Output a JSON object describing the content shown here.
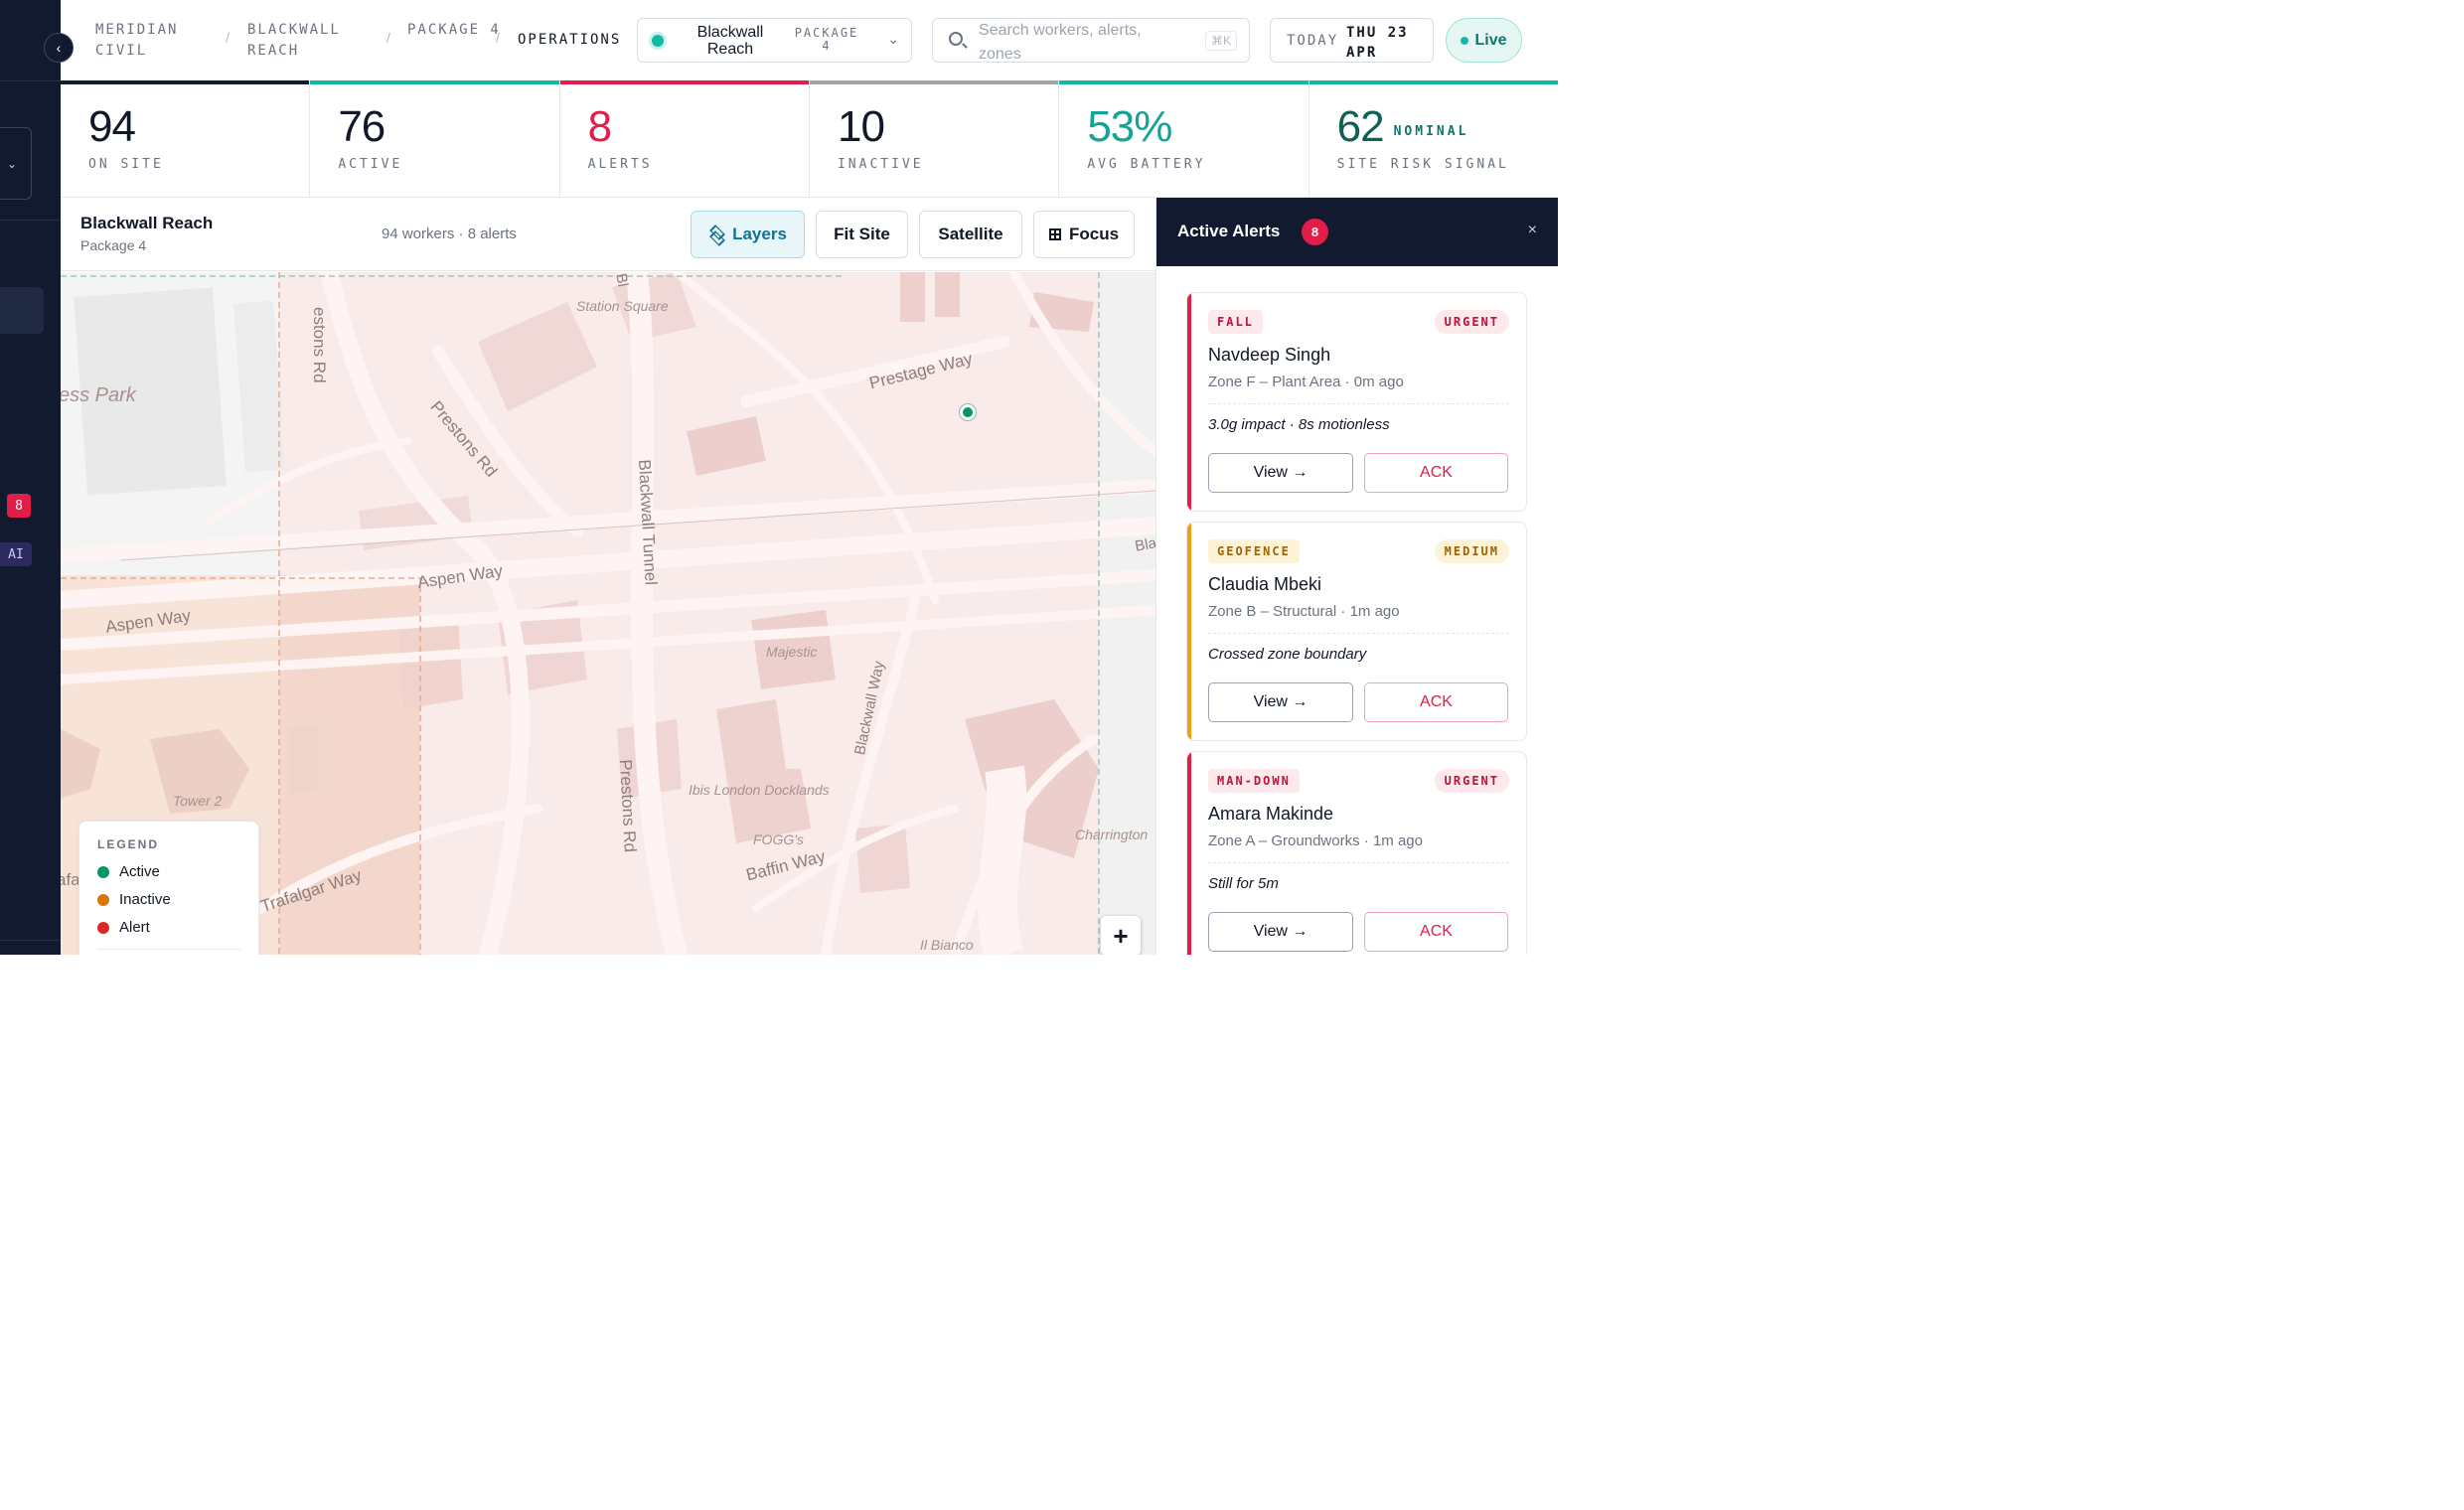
{
  "breadcrumb": [
    {
      "label": "MERIDIAN CIVIL"
    },
    {
      "label": "BLACKWALL REACH"
    },
    {
      "label": "PACKAGE 4"
    },
    {
      "label": "OPERATIONS"
    }
  ],
  "site_selector": {
    "site": "Blackwall Reach",
    "package": "PACKAGE 4"
  },
  "search": {
    "placeholder": "Search workers, alerts, zones",
    "shortcut": "⌘K"
  },
  "date": {
    "label": "TODAY",
    "value": "THU 23 APR"
  },
  "live_label": "Live",
  "sidebar": {
    "alert_badge": "8",
    "ai_label": "AI"
  },
  "kpis": [
    {
      "value": "94",
      "label": "ON SITE",
      "accent": "#111827",
      "bar": "#111a2e"
    },
    {
      "value": "76",
      "label": "ACTIVE",
      "accent": "#111827",
      "bar": "#14b8a6"
    },
    {
      "value": "8",
      "label": "ALERTS",
      "accent": "#e11d48",
      "bar": "#e11d48"
    },
    {
      "value": "10",
      "label": "INACTIVE",
      "accent": "#111827",
      "bar": "#a3a3a3"
    },
    {
      "value": "53%",
      "label": "AVG BATTERY",
      "accent": "#14a394",
      "bar": "#14b8a6"
    },
    {
      "value": "62",
      "suffix": "NOMINAL",
      "label": "SITE RISK SIGNAL",
      "accent": "#0f5f55",
      "bar": "#14b8a6"
    }
  ],
  "map": {
    "title": "Blackwall Reach",
    "subtitle": "Package 4",
    "count": "94 workers · 8 alerts",
    "buttons": {
      "layers": "Layers",
      "fit": "Fit Site",
      "satellite": "Satellite",
      "focus": "Focus"
    },
    "places": {
      "station_square": "Station Square",
      "park": "ess Park",
      "majestic": "Majestic",
      "ibis": "Ibis London Docklands",
      "fogg": "FOGG's",
      "tower": "Tower 2",
      "charrington": "Charrington",
      "il_bianco": "Il Bianco",
      "trafalgar_cut": "afa"
    },
    "roads": {
      "prestons_top": "estons Rd",
      "prestons_diag": "Prestons Rd",
      "prestage": "Prestage Way",
      "aspen_mid": "Aspen Way",
      "aspen_left": "Aspen Way",
      "blackwall_tunnel": "Blackwall Tunnel",
      "blackwall_way": "Blackwall Way",
      "prestons_bottom": "Prestons Rd",
      "baffin": "Baffin Way",
      "trafalgar": "Trafalgar Way",
      "bl_top": "Bl",
      "bla_right": "Bla"
    },
    "legend": {
      "title": "LEGEND",
      "items": [
        {
          "label": "Active",
          "color": "#059669"
        },
        {
          "label": "Inactive",
          "color": "#d97706"
        },
        {
          "label": "Alert",
          "color": "#dc2626"
        }
      ]
    },
    "zoom_in": "+"
  },
  "alerts": {
    "title": "Active Alerts",
    "count": "8",
    "close": "×",
    "items": [
      {
        "type": "FALL",
        "priority": "URGENT",
        "name": "Navdeep Singh",
        "zone": "Zone F – Plant Area",
        "time": "0m ago",
        "desc": "3.0g impact · 8s motionless",
        "view": "View →",
        "ack": "ACK",
        "color": "#e11d48"
      },
      {
        "type": "GEOFENCE",
        "priority": "MEDIUM",
        "name": "Claudia Mbeki",
        "zone": "Zone B – Structural",
        "time": "1m ago",
        "desc": "Crossed zone boundary",
        "view": "View →",
        "ack": "ACK",
        "color": "#f59e0b"
      },
      {
        "type": "MAN-DOWN",
        "priority": "URGENT",
        "name": "Amara Makinde",
        "zone": "Zone A – Groundworks",
        "time": "1m ago",
        "desc": "Still for 5m",
        "view": "View →",
        "ack": "ACK",
        "color": "#e11d48"
      }
    ]
  }
}
